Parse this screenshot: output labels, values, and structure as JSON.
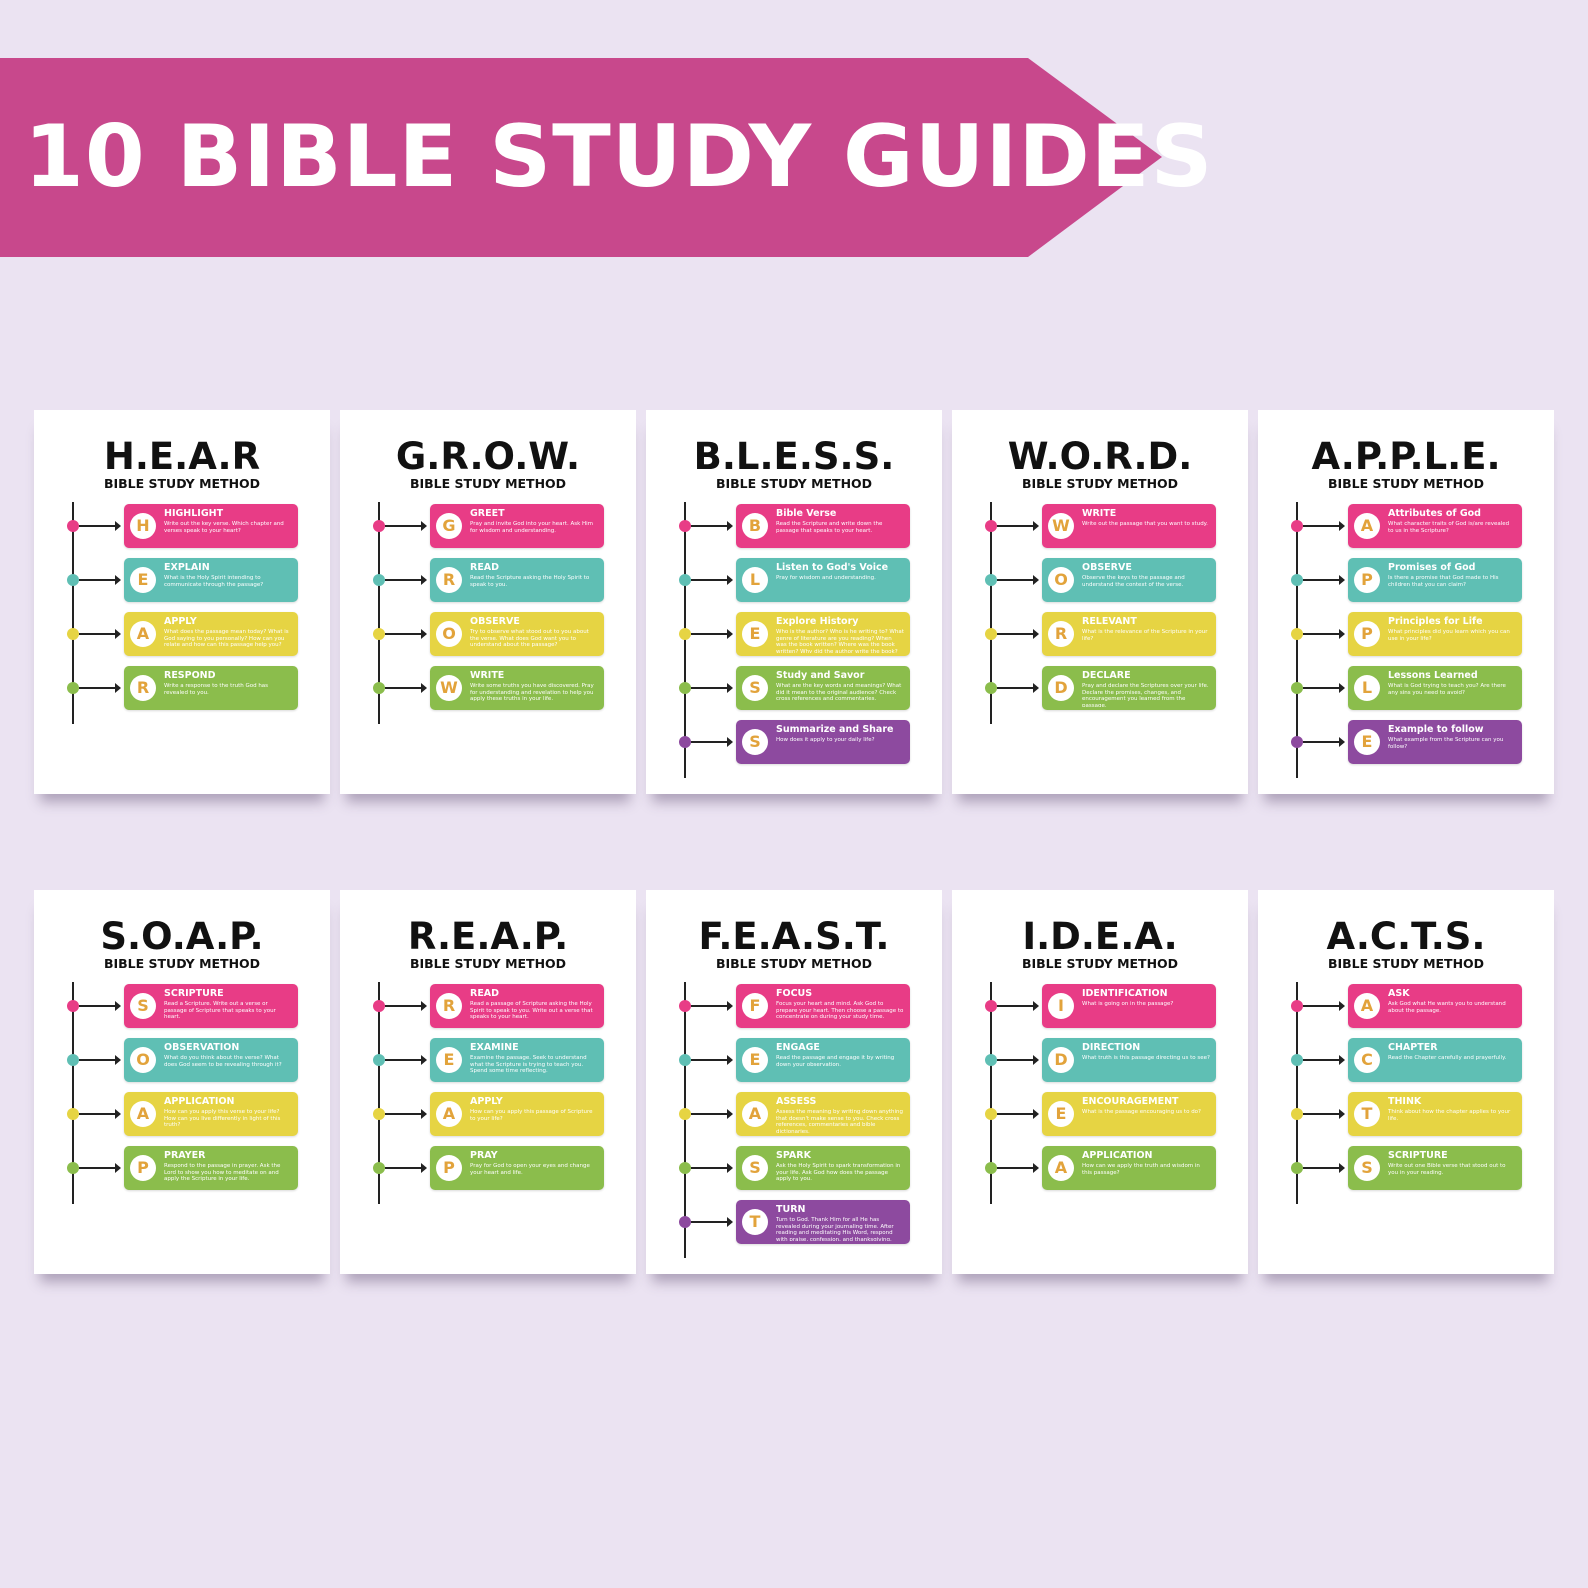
{
  "banner": {
    "title": "10 BIBLE STUDY GUIDES",
    "color": "#c8488c"
  },
  "colors": {
    "pink": "#e83c86",
    "teal": "#5fbfb4",
    "yellow": "#e6d443",
    "green": "#8bbd4c",
    "purple": "#8d4a9f",
    "letter": "#e2a33b"
  },
  "sheets": [
    {
      "title": "H.E.A.R",
      "subtitle": "BIBLE STUDY METHOD",
      "steps": [
        {
          "letter": "H",
          "label": "HIGHLIGHT",
          "desc": "Write out the key verse. Which chapter and verses speak to your heart?",
          "color": "pink"
        },
        {
          "letter": "E",
          "label": "EXPLAIN",
          "desc": "What is the Holy Spirit intending to communicate through the passage?",
          "color": "teal"
        },
        {
          "letter": "A",
          "label": "APPLY",
          "desc": "What does the passage mean today? What is God saying to you personally? How can you relate and how can this passage help you?",
          "color": "yellow"
        },
        {
          "letter": "R",
          "label": "RESPOND",
          "desc": "Write a response to the truth God has revealed to you.",
          "color": "green"
        }
      ]
    },
    {
      "title": "G.R.O.W.",
      "subtitle": "BIBLE STUDY METHOD",
      "steps": [
        {
          "letter": "G",
          "label": "GREET",
          "desc": "Pray and invite God into your heart. Ask Him for wisdom and understanding.",
          "color": "pink"
        },
        {
          "letter": "R",
          "label": "READ",
          "desc": "Read the Scripture asking the Holy Spirit to speak to you.",
          "color": "teal"
        },
        {
          "letter": "O",
          "label": "OBSERVE",
          "desc": "Try to observe what stood out to you about the verse. What does God want you to understand about the passage?",
          "color": "yellow"
        },
        {
          "letter": "W",
          "label": "WRITE",
          "desc": "Write some truths you have discovered. Pray for understanding and revelation to help you apply these truths in your life.",
          "color": "green"
        }
      ]
    },
    {
      "title": "B.L.E.S.S.",
      "subtitle": "BIBLE STUDY METHOD",
      "steps": [
        {
          "letter": "B",
          "label": "Bible Verse",
          "desc": "Read the Scripture and write down the passage that speaks to your heart.",
          "color": "pink"
        },
        {
          "letter": "L",
          "label": "Listen to God's Voice",
          "desc": "Pray for wisdom and understanding.",
          "color": "teal"
        },
        {
          "letter": "E",
          "label": "Explore History",
          "desc": "Who is the author? Who is he writing to? What genre of literature are you reading? When was the book written? Where was the book written? Why did the author write the book?",
          "color": "yellow"
        },
        {
          "letter": "S",
          "label": "Study and Savor",
          "desc": "What are the key words and meanings? What did it mean to the original audience? Check cross references and commentaries.",
          "color": "green"
        },
        {
          "letter": "S",
          "label": "Summarize and Share",
          "desc": "How does it apply to your daily life?",
          "color": "purple"
        }
      ]
    },
    {
      "title": "W.O.R.D.",
      "subtitle": "BIBLE STUDY METHOD",
      "steps": [
        {
          "letter": "W",
          "label": "WRITE",
          "desc": "Write out the passage that you want to study.",
          "color": "pink"
        },
        {
          "letter": "O",
          "label": "OBSERVE",
          "desc": "Observe the keys to the passage and understand the context of the verse.",
          "color": "teal"
        },
        {
          "letter": "R",
          "label": "RELEVANT",
          "desc": "What is the relevance of the Scripture in your life?",
          "color": "yellow"
        },
        {
          "letter": "D",
          "label": "DECLARE",
          "desc": "Pray and declare the Scriptures over your life. Declare the promises, changes, and encouragement you learned from the passage.",
          "color": "green"
        }
      ]
    },
    {
      "title": "A.P.P.L.E.",
      "subtitle": "BIBLE STUDY METHOD",
      "steps": [
        {
          "letter": "A",
          "label": "Attributes of God",
          "desc": "What character traits of God is/are revealed to us in the Scripture?",
          "color": "pink"
        },
        {
          "letter": "P",
          "label": "Promises of God",
          "desc": "Is there a promise that God made to His children that you can claim?",
          "color": "teal"
        },
        {
          "letter": "P",
          "label": "Principles for Life",
          "desc": "What principles did you learn which you can use in your life?",
          "color": "yellow"
        },
        {
          "letter": "L",
          "label": "Lessons Learned",
          "desc": "What is God trying to teach you? Are there any sins you need to avoid?",
          "color": "green"
        },
        {
          "letter": "E",
          "label": "Example to follow",
          "desc": "What example from the Scripture can you follow?",
          "color": "purple"
        }
      ]
    },
    {
      "title": "S.O.A.P.",
      "subtitle": "BIBLE STUDY METHOD",
      "steps": [
        {
          "letter": "S",
          "label": "SCRIPTURE",
          "desc": "Read a Scripture. Write out a verse or passage of Scripture that speaks to your heart.",
          "color": "pink"
        },
        {
          "letter": "O",
          "label": "OBSERVATION",
          "desc": "What do you think about the verse? What does God seem to be revealing through it?",
          "color": "teal"
        },
        {
          "letter": "A",
          "label": "APPLICATION",
          "desc": "How can you apply this verse to your life? How can you live differently in light of this truth?",
          "color": "yellow"
        },
        {
          "letter": "P",
          "label": "PRAYER",
          "desc": "Respond to the passage in prayer. Ask the Lord to show you how to meditate on and apply the Scripture in your life.",
          "color": "green"
        }
      ]
    },
    {
      "title": "R.E.A.P.",
      "subtitle": "BIBLE STUDY METHOD",
      "steps": [
        {
          "letter": "R",
          "label": "READ",
          "desc": "Read a passage of Scripture asking the Holy Spirit to speak to you. Write out a verse that speaks to your heart.",
          "color": "pink"
        },
        {
          "letter": "E",
          "label": "EXAMINE",
          "desc": "Examine the passage. Seek to understand what the Scripture is trying to teach you. Spend some time reflecting.",
          "color": "teal"
        },
        {
          "letter": "A",
          "label": "APPLY",
          "desc": "How can you apply this passage of Scripture to your life?",
          "color": "yellow"
        },
        {
          "letter": "P",
          "label": "PRAY",
          "desc": "Pray for God to open your eyes and change your heart and life.",
          "color": "green"
        }
      ]
    },
    {
      "title": "F.E.A.S.T.",
      "subtitle": "BIBLE STUDY METHOD",
      "steps": [
        {
          "letter": "F",
          "label": "FOCUS",
          "desc": "Focus your heart and mind. Ask God to prepare your heart. Then choose a passage to concentrate on during your study time.",
          "color": "pink"
        },
        {
          "letter": "E",
          "label": "ENGAGE",
          "desc": "Read the passage and engage it by writing down your observation.",
          "color": "teal"
        },
        {
          "letter": "A",
          "label": "ASSESS",
          "desc": "Assess the meaning by writing down anything that doesn't make sense to you. Check cross references, commentaries and bible dictionaries.",
          "color": "yellow"
        },
        {
          "letter": "S",
          "label": "SPARK",
          "desc": "Ask the Holy Spirit to spark transformation in your life. Ask God how does the passage apply to you.",
          "color": "green"
        },
        {
          "letter": "T",
          "label": "TURN",
          "desc": "Turn to God. Thank Him for all He has revealed during your journaling time. After reading and meditating His Word, respond with praise, confession, and thanksgiving.",
          "color": "purple"
        }
      ]
    },
    {
      "title": "I.D.E.A.",
      "subtitle": "BIBLE STUDY METHOD",
      "steps": [
        {
          "letter": "I",
          "label": "IDENTIFICATION",
          "desc": "What is going on in the passage?",
          "color": "pink"
        },
        {
          "letter": "D",
          "label": "DIRECTION",
          "desc": "What truth is this passage directing us to see?",
          "color": "teal"
        },
        {
          "letter": "E",
          "label": "ENCOURAGEMENT",
          "desc": "What is the passage encouraging us to do?",
          "color": "yellow"
        },
        {
          "letter": "A",
          "label": "APPLICATION",
          "desc": "How can we apply the truth and wisdom in this passage?",
          "color": "green"
        }
      ]
    },
    {
      "title": "A.C.T.S.",
      "subtitle": "BIBLE STUDY METHOD",
      "steps": [
        {
          "letter": "A",
          "label": "ASK",
          "desc": "Ask God what He wants you to understand about the passage.",
          "color": "pink"
        },
        {
          "letter": "C",
          "label": "CHAPTER",
          "desc": "Read the Chapter carefully and prayerfully.",
          "color": "teal"
        },
        {
          "letter": "T",
          "label": "THINK",
          "desc": "Think about how the chapter applies to your life.",
          "color": "yellow"
        },
        {
          "letter": "S",
          "label": "SCRIPTURE",
          "desc": "Write out one Bible verse that stood out to you in your reading.",
          "color": "green"
        }
      ]
    }
  ]
}
